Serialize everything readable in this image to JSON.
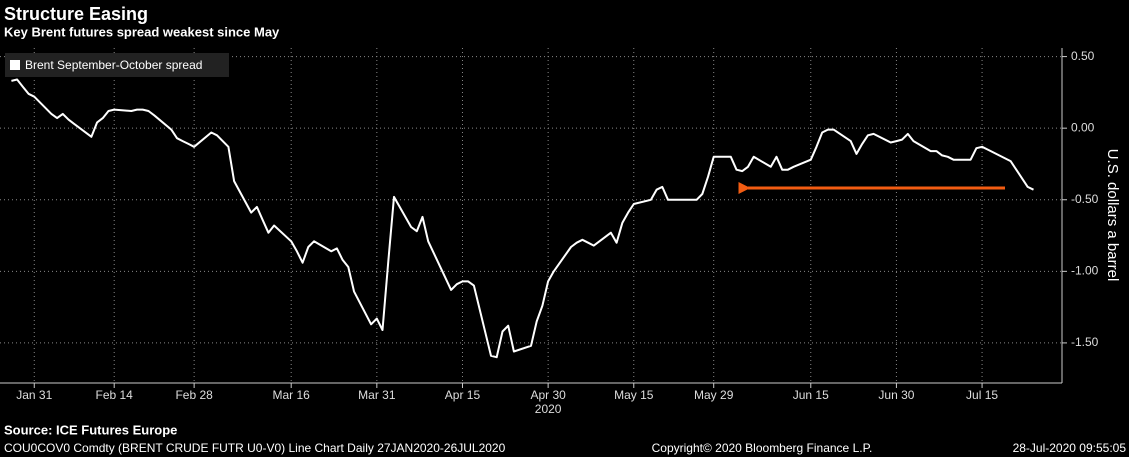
{
  "chart_data": {
    "type": "line",
    "title": "Structure Easing",
    "subtitle": "Key Brent futures spread weakest since May",
    "ylabel": "U.S. dollars a barrel",
    "x_year": "2020",
    "source": "Source: ICE Futures Europe",
    "footer": {
      "description": "COU0COV0 Comdty (BRENT CRUDE FUTR  U0-V0) Line Chart  Daily 27JAN2020-26JUL2020",
      "copyright": "Copyright© 2020 Bloomberg Finance L.P.",
      "timestamp": "28-Jul-2020 09:55:05"
    },
    "grid": true,
    "legend": "top-left",
    "xlim": [
      "2020-01-25",
      "2020-07-29"
    ],
    "xticks": [
      {
        "value": "2020-01-31",
        "label": "Jan 31"
      },
      {
        "value": "2020-02-14",
        "label": "Feb 14"
      },
      {
        "value": "2020-02-28",
        "label": "Feb 28"
      },
      {
        "value": "2020-03-16",
        "label": "Mar 16"
      },
      {
        "value": "2020-03-31",
        "label": "Mar 31"
      },
      {
        "value": "2020-04-15",
        "label": "Apr 15"
      },
      {
        "value": "2020-04-30",
        "label": "Apr 30"
      },
      {
        "value": "2020-05-15",
        "label": "May 15"
      },
      {
        "value": "2020-05-29",
        "label": "May 29"
      },
      {
        "value": "2020-06-15",
        "label": "Jun 15"
      },
      {
        "value": "2020-06-30",
        "label": "Jun 30"
      },
      {
        "value": "2020-07-15",
        "label": "Jul 15"
      }
    ],
    "ylim": [
      -1.78,
      0.56
    ],
    "yticks": [
      {
        "value": 0.5,
        "label": "0.50"
      },
      {
        "value": 0,
        "label": "0.00"
      },
      {
        "value": -0.5,
        "label": "-0.50"
      },
      {
        "value": -1,
        "label": "-1.00"
      },
      {
        "value": -1.5,
        "label": "-1.50"
      }
    ],
    "x": [
      "2020-01-27",
      "2020-01-28",
      "2020-01-29",
      "2020-01-30",
      "2020-01-31",
      "2020-02-03",
      "2020-02-04",
      "2020-02-05",
      "2020-02-06",
      "2020-02-07",
      "2020-02-10",
      "2020-02-11",
      "2020-02-12",
      "2020-02-13",
      "2020-02-14",
      "2020-02-17",
      "2020-02-18",
      "2020-02-19",
      "2020-02-20",
      "2020-02-21",
      "2020-02-24",
      "2020-02-25",
      "2020-02-26",
      "2020-02-27",
      "2020-02-28",
      "2020-03-02",
      "2020-03-03",
      "2020-03-04",
      "2020-03-05",
      "2020-03-06",
      "2020-03-09",
      "2020-03-10",
      "2020-03-11",
      "2020-03-12",
      "2020-03-13",
      "2020-03-16",
      "2020-03-17",
      "2020-03-18",
      "2020-03-19",
      "2020-03-20",
      "2020-03-23",
      "2020-03-24",
      "2020-03-25",
      "2020-03-26",
      "2020-03-27",
      "2020-03-30",
      "2020-03-31",
      "2020-04-01",
      "2020-04-02",
      "2020-04-03",
      "2020-04-06",
      "2020-04-07",
      "2020-04-08",
      "2020-04-09",
      "2020-04-13",
      "2020-04-14",
      "2020-04-15",
      "2020-04-16",
      "2020-04-17",
      "2020-04-20",
      "2020-04-21",
      "2020-04-22",
      "2020-04-23",
      "2020-04-24",
      "2020-04-27",
      "2020-04-28",
      "2020-04-29",
      "2020-04-30",
      "2020-05-01",
      "2020-05-04",
      "2020-05-05",
      "2020-05-06",
      "2020-05-07",
      "2020-05-08",
      "2020-05-11",
      "2020-05-12",
      "2020-05-13",
      "2020-05-14",
      "2020-05-15",
      "2020-05-18",
      "2020-05-19",
      "2020-05-20",
      "2020-05-21",
      "2020-05-22",
      "2020-05-26",
      "2020-05-27",
      "2020-05-28",
      "2020-05-29",
      "2020-06-01",
      "2020-06-02",
      "2020-06-03",
      "2020-06-04",
      "2020-06-05",
      "2020-06-08",
      "2020-06-09",
      "2020-06-10",
      "2020-06-11",
      "2020-06-12",
      "2020-06-15",
      "2020-06-16",
      "2020-06-17",
      "2020-06-18",
      "2020-06-19",
      "2020-06-22",
      "2020-06-23",
      "2020-06-24",
      "2020-06-25",
      "2020-06-26",
      "2020-06-29",
      "2020-06-30",
      "2020-07-01",
      "2020-07-02",
      "2020-07-03",
      "2020-07-06",
      "2020-07-07",
      "2020-07-08",
      "2020-07-09",
      "2020-07-10",
      "2020-07-13",
      "2020-07-14",
      "2020-07-15",
      "2020-07-16",
      "2020-07-17",
      "2020-07-20",
      "2020-07-21",
      "2020-07-22",
      "2020-07-23",
      "2020-07-24"
    ],
    "series": [
      {
        "name": "Brent September-October spread",
        "color": "#ffffff",
        "values": [
          0.33,
          0.34,
          0.29,
          0.24,
          0.22,
          0.1,
          0.07,
          0.1,
          0.06,
          0.03,
          -0.06,
          0.04,
          0.07,
          0.12,
          0.13,
          0.12,
          0.13,
          0.13,
          0.12,
          0.09,
          -0.01,
          -0.07,
          -0.09,
          -0.11,
          -0.13,
          -0.03,
          -0.05,
          -0.09,
          -0.13,
          -0.37,
          -0.59,
          -0.55,
          -0.64,
          -0.73,
          -0.68,
          -0.79,
          -0.86,
          -0.94,
          -0.83,
          -0.79,
          -0.86,
          -0.84,
          -0.92,
          -0.97,
          -1.14,
          -1.37,
          -1.33,
          -1.41,
          -0.93,
          -0.48,
          -0.69,
          -0.72,
          -0.62,
          -0.79,
          -1.13,
          -1.09,
          -1.07,
          -1.07,
          -1.1,
          -1.59,
          -1.6,
          -1.42,
          -1.38,
          -1.56,
          -1.52,
          -1.35,
          -1.24,
          -1.07,
          -1.0,
          -0.83,
          -0.8,
          -0.78,
          -0.8,
          -0.82,
          -0.73,
          -0.8,
          -0.66,
          -0.59,
          -0.53,
          -0.5,
          -0.43,
          -0.41,
          -0.5,
          -0.5,
          -0.5,
          -0.46,
          -0.34,
          -0.2,
          -0.2,
          -0.29,
          -0.3,
          -0.27,
          -0.2,
          -0.27,
          -0.2,
          -0.29,
          -0.29,
          -0.27,
          -0.22,
          -0.13,
          -0.03,
          -0.01,
          -0.01,
          -0.09,
          -0.18,
          -0.11,
          -0.05,
          -0.04,
          -0.1,
          -0.09,
          -0.08,
          -0.04,
          -0.09,
          -0.16,
          -0.16,
          -0.19,
          -0.2,
          -0.22,
          -0.22,
          -0.14,
          -0.13,
          -0.15,
          -0.17,
          -0.23,
          -0.29,
          -0.35,
          -0.41,
          -0.43
        ]
      }
    ]
  }
}
